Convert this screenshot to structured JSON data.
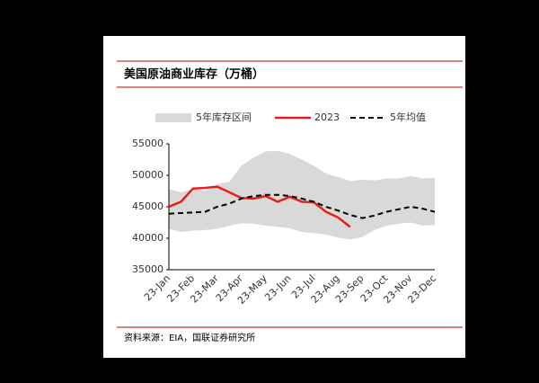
{
  "chart_data": {
    "type": "band-line",
    "title": "美国原油商业库存（万桶）",
    "source": "资料来源：EIA，国联证券研究所",
    "categories": [
      "23-Jan",
      null,
      "23-Feb",
      null,
      "23-Mar",
      null,
      "23-Apr",
      null,
      "23-May",
      null,
      "23-Jun",
      null,
      "23-Jul",
      null,
      "23-Aug",
      null,
      "23-Sep",
      null,
      "23-Oct",
      null,
      "23-Nov",
      null,
      "23-Dec"
    ],
    "band": {
      "name": "5年库存区间",
      "color": "#d9d9d9",
      "low": [
        41500,
        41000,
        41200,
        41300,
        41500,
        42000,
        42400,
        42300,
        42000,
        41800,
        41600,
        41000,
        40800,
        40600,
        40100,
        39800,
        40200,
        41300,
        42000,
        42300,
        42500,
        42000,
        42100
      ],
      "high": [
        47800,
        47300,
        47900,
        47500,
        48600,
        49000,
        51500,
        52800,
        53800,
        53900,
        53400,
        52500,
        51500,
        50300,
        49700,
        49100,
        49300,
        49200,
        49500,
        49500,
        49900,
        49500,
        49600
      ]
    },
    "series": [
      {
        "name": "2023",
        "color": "#e3201b",
        "dash": false,
        "values": [
          45000,
          45800,
          47900,
          48000,
          48200,
          47300,
          46400,
          46300,
          46700,
          45800,
          46600,
          45800,
          45700,
          44200,
          43300,
          41800,
          null,
          null,
          null,
          null,
          null,
          null,
          null
        ]
      },
      {
        "name": "5年均值",
        "color": "#000000",
        "dash": true,
        "values": [
          43900,
          44000,
          44100,
          44200,
          45000,
          45500,
          46300,
          46700,
          46900,
          46900,
          46700,
          46300,
          45800,
          45000,
          44400,
          43700,
          43200,
          43600,
          44200,
          44600,
          45000,
          44700,
          44200
        ]
      }
    ],
    "ylim": [
      35000,
      55000
    ],
    "yticks": [
      35000,
      40000,
      45000,
      50000,
      55000
    ]
  }
}
